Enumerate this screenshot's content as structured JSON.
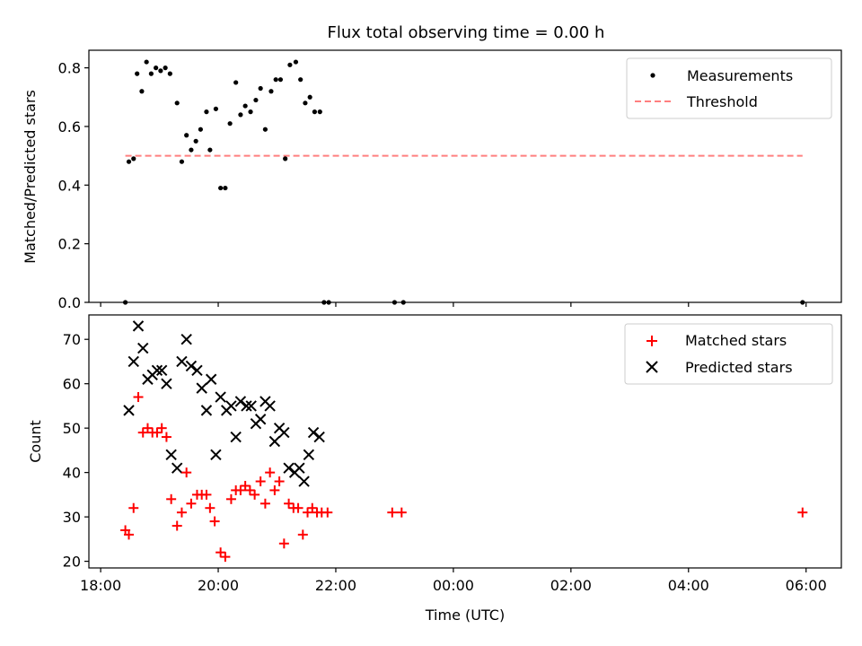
{
  "chart_data": {
    "title": "Flux total observing time = 0.00 h",
    "x_axis": {
      "label": "Time (UTC)",
      "range_hours": [
        17.8,
        30.6
      ],
      "ticks": [
        {
          "value": 18,
          "label": "18:00"
        },
        {
          "value": 20,
          "label": "20:00"
        },
        {
          "value": 22,
          "label": "22:00"
        },
        {
          "value": 24,
          "label": "00:00"
        },
        {
          "value": 26,
          "label": "02:00"
        },
        {
          "value": 28,
          "label": "04:00"
        },
        {
          "value": 30,
          "label": "06:00"
        }
      ]
    },
    "panels": [
      {
        "type": "scatter",
        "ylabel": "Matched/Predicted stars",
        "ylim": [
          0,
          0.86
        ],
        "yticks": [
          {
            "value": 0.0,
            "label": "0.0"
          },
          {
            "value": 0.2,
            "label": "0.2"
          },
          {
            "value": 0.4,
            "label": "0.4"
          },
          {
            "value": 0.6,
            "label": "0.6"
          },
          {
            "value": 0.8,
            "label": "0.8"
          }
        ],
        "legend": {
          "placement": "top-right",
          "entries": [
            {
              "label": "Measurements",
              "marker": "dot",
              "color": "#000000"
            },
            {
              "label": "Threshold",
              "marker": "dashed-line",
              "color": "#ff7f7f"
            }
          ]
        },
        "threshold": {
          "value": 0.5,
          "x_start": 18.42,
          "x_end": 29.94,
          "color": "#ff7f7f"
        },
        "series": [
          {
            "name": "Measurements",
            "color": "#000000",
            "points": [
              [
                18.42,
                0.0
              ],
              [
                18.48,
                0.48
              ],
              [
                18.56,
                0.49
              ],
              [
                18.62,
                0.78
              ],
              [
                18.7,
                0.72
              ],
              [
                18.78,
                0.82
              ],
              [
                18.86,
                0.78
              ],
              [
                18.94,
                0.8
              ],
              [
                19.02,
                0.79
              ],
              [
                19.1,
                0.8
              ],
              [
                19.18,
                0.78
              ],
              [
                19.3,
                0.68
              ],
              [
                19.38,
                0.48
              ],
              [
                19.46,
                0.57
              ],
              [
                19.54,
                0.52
              ],
              [
                19.62,
                0.55
              ],
              [
                19.7,
                0.59
              ],
              [
                19.8,
                0.65
              ],
              [
                19.86,
                0.52
              ],
              [
                19.96,
                0.66
              ],
              [
                20.04,
                0.39
              ],
              [
                20.12,
                0.39
              ],
              [
                20.2,
                0.61
              ],
              [
                20.3,
                0.75
              ],
              [
                20.38,
                0.64
              ],
              [
                20.46,
                0.67
              ],
              [
                20.55,
                0.65
              ],
              [
                20.64,
                0.69
              ],
              [
                20.72,
                0.73
              ],
              [
                20.8,
                0.59
              ],
              [
                20.9,
                0.72
              ],
              [
                20.98,
                0.76
              ],
              [
                21.06,
                0.76
              ],
              [
                21.14,
                0.49
              ],
              [
                21.22,
                0.81
              ],
              [
                21.32,
                0.82
              ],
              [
                21.4,
                0.76
              ],
              [
                21.48,
                0.68
              ],
              [
                21.56,
                0.7
              ],
              [
                21.64,
                0.65
              ],
              [
                21.73,
                0.65
              ],
              [
                21.8,
                0.0
              ],
              [
                21.88,
                0.0
              ],
              [
                23.0,
                0.0
              ],
              [
                23.15,
                0.0
              ],
              [
                29.94,
                0.0
              ]
            ]
          }
        ]
      },
      {
        "type": "scatter",
        "ylabel": "Count",
        "ylim": [
          18.5,
          75.5
        ],
        "yticks": [
          {
            "value": 20,
            "label": "20"
          },
          {
            "value": 30,
            "label": "30"
          },
          {
            "value": 40,
            "label": "40"
          },
          {
            "value": 50,
            "label": "50"
          },
          {
            "value": 60,
            "label": "60"
          },
          {
            "value": 70,
            "label": "70"
          }
        ],
        "legend": {
          "placement": "top-right",
          "entries": [
            {
              "label": "Matched stars",
              "marker": "plus",
              "color": "#ff0000"
            },
            {
              "label": "Predicted stars",
              "marker": "x",
              "color": "#000000"
            }
          ]
        },
        "series": [
          {
            "name": "Matched stars",
            "marker": "plus",
            "color": "#ff0000",
            "points": [
              [
                18.42,
                27
              ],
              [
                18.48,
                26
              ],
              [
                18.56,
                32
              ],
              [
                18.64,
                57
              ],
              [
                18.72,
                49
              ],
              [
                18.8,
                50
              ],
              [
                18.88,
                49
              ],
              [
                18.96,
                49
              ],
              [
                19.04,
                50
              ],
              [
                19.12,
                48
              ],
              [
                19.2,
                34
              ],
              [
                19.3,
                28
              ],
              [
                19.38,
                31
              ],
              [
                19.46,
                40
              ],
              [
                19.54,
                33
              ],
              [
                19.64,
                35
              ],
              [
                19.72,
                35
              ],
              [
                19.8,
                35
              ],
              [
                19.86,
                32
              ],
              [
                19.94,
                29
              ],
              [
                20.04,
                22
              ],
              [
                20.12,
                21
              ],
              [
                20.22,
                34
              ],
              [
                20.3,
                36
              ],
              [
                20.38,
                36
              ],
              [
                20.46,
                37
              ],
              [
                20.54,
                36
              ],
              [
                20.62,
                35
              ],
              [
                20.72,
                38
              ],
              [
                20.8,
                33
              ],
              [
                20.88,
                40
              ],
              [
                20.96,
                36
              ],
              [
                21.04,
                38
              ],
              [
                21.12,
                24
              ],
              [
                21.2,
                33
              ],
              [
                21.28,
                32
              ],
              [
                21.36,
                32
              ],
              [
                21.44,
                26
              ],
              [
                21.52,
                31
              ],
              [
                21.6,
                32
              ],
              [
                21.68,
                31
              ],
              [
                21.76,
                31
              ],
              [
                21.86,
                31
              ],
              [
                22.96,
                31
              ],
              [
                23.12,
                31
              ],
              [
                29.94,
                31
              ]
            ]
          },
          {
            "name": "Predicted stars",
            "marker": "x",
            "color": "#000000",
            "points": [
              [
                18.48,
                54
              ],
              [
                18.56,
                65
              ],
              [
                18.64,
                73
              ],
              [
                18.72,
                68
              ],
              [
                18.8,
                61
              ],
              [
                18.88,
                62
              ],
              [
                18.96,
                63
              ],
              [
                19.04,
                63
              ],
              [
                19.12,
                60
              ],
              [
                19.2,
                44
              ],
              [
                19.3,
                41
              ],
              [
                19.38,
                65
              ],
              [
                19.46,
                70
              ],
              [
                19.54,
                64
              ],
              [
                19.64,
                63
              ],
              [
                19.72,
                59
              ],
              [
                19.8,
                54
              ],
              [
                19.88,
                61
              ],
              [
                19.96,
                44
              ],
              [
                20.04,
                57
              ],
              [
                20.14,
                54
              ],
              [
                20.22,
                55
              ],
              [
                20.3,
                48
              ],
              [
                20.38,
                56
              ],
              [
                20.48,
                55
              ],
              [
                20.56,
                55
              ],
              [
                20.64,
                51
              ],
              [
                20.72,
                52
              ],
              [
                20.8,
                56
              ],
              [
                20.88,
                55
              ],
              [
                20.96,
                47
              ],
              [
                21.04,
                50
              ],
              [
                21.12,
                49
              ],
              [
                21.2,
                41
              ],
              [
                21.3,
                40
              ],
              [
                21.38,
                41
              ],
              [
                21.46,
                38
              ],
              [
                21.54,
                44
              ],
              [
                21.62,
                49
              ],
              [
                21.72,
                48
              ]
            ]
          }
        ]
      }
    ]
  }
}
